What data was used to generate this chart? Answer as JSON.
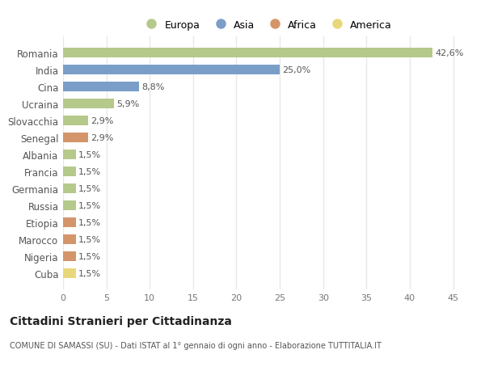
{
  "categories": [
    "Cuba",
    "Nigeria",
    "Marocco",
    "Etiopia",
    "Russia",
    "Germania",
    "Francia",
    "Albania",
    "Senegal",
    "Slovacchia",
    "Ucraina",
    "Cina",
    "India",
    "Romania"
  ],
  "values": [
    1.5,
    1.5,
    1.5,
    1.5,
    1.5,
    1.5,
    1.5,
    1.5,
    2.9,
    2.9,
    5.9,
    8.8,
    25.0,
    42.6
  ],
  "bar_colors": {
    "Romania": "#b5c98a",
    "India": "#7a9ec8",
    "Cina": "#7a9ec8",
    "Ucraina": "#b5c98a",
    "Slovacchia": "#b5c98a",
    "Senegal": "#d4956a",
    "Albania": "#b5c98a",
    "Francia": "#b5c98a",
    "Germania": "#b5c98a",
    "Russia": "#b5c98a",
    "Etiopia": "#d4956a",
    "Marocco": "#d4956a",
    "Nigeria": "#d4956a",
    "Cuba": "#e8d87a"
  },
  "labels": [
    "1,5%",
    "1,5%",
    "1,5%",
    "1,5%",
    "1,5%",
    "1,5%",
    "1,5%",
    "1,5%",
    "2,9%",
    "2,9%",
    "5,9%",
    "8,8%",
    "25,0%",
    "42,6%"
  ],
  "legend": [
    {
      "label": "Europa",
      "color": "#b5c98a"
    },
    {
      "label": "Asia",
      "color": "#7a9ec8"
    },
    {
      "label": "Africa",
      "color": "#d4956a"
    },
    {
      "label": "America",
      "color": "#e8d87a"
    }
  ],
  "xlim": [
    0,
    47
  ],
  "xticks": [
    0,
    5,
    10,
    15,
    20,
    25,
    30,
    35,
    40,
    45
  ],
  "title": "Cittadini Stranieri per Cittadinanza",
  "subtitle": "COMUNE DI SAMASSI (SU) - Dati ISTAT al 1° gennaio di ogni anno - Elaborazione TUTTITALIA.IT",
  "background_color": "#ffffff",
  "grid_color": "#e8e8e8",
  "bar_height": 0.55
}
